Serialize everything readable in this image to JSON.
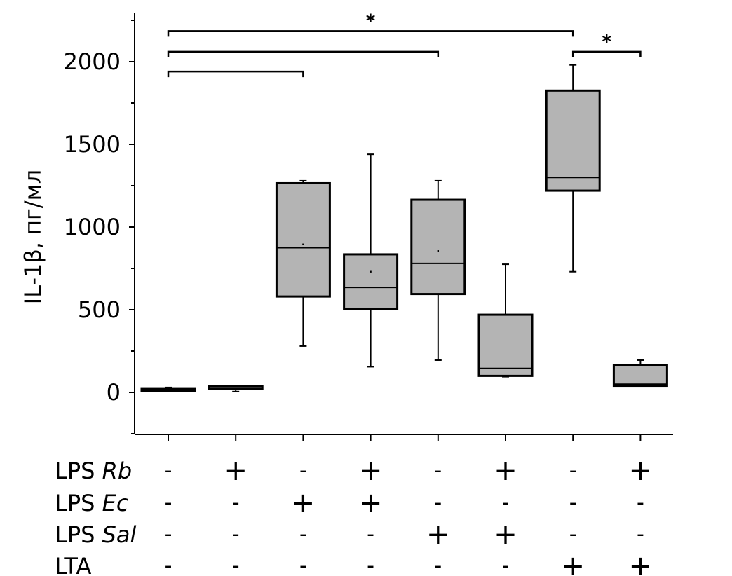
{
  "chart_data": {
    "type": "box",
    "ylabel": "IL-1β, пг/мл",
    "ylim": [
      -250,
      2300
    ],
    "yticks": [
      0,
      500,
      1000,
      1500,
      2000
    ],
    "groups": [
      {
        "whisker_low": 10,
        "q1": 10,
        "median": 20,
        "q3": 25,
        "whisker_high": 30,
        "mean": null
      },
      {
        "whisker_low": 5,
        "q1": 30,
        "median": 35,
        "q3": 40,
        "whisker_high": 40,
        "mean": null
      },
      {
        "whisker_low": 280,
        "q1": 580,
        "median": 875,
        "q3": 1265,
        "whisker_high": 1280,
        "mean": 895
      },
      {
        "whisker_low": 155,
        "q1": 505,
        "median": 635,
        "q3": 835,
        "whisker_high": 1440,
        "mean": 730
      },
      {
        "whisker_low": 195,
        "q1": 595,
        "median": 780,
        "q3": 1165,
        "whisker_high": 1280,
        "mean": 855
      },
      {
        "whisker_low": 95,
        "q1": 100,
        "median": 145,
        "q3": 470,
        "whisker_high": 775,
        "mean": null
      },
      {
        "whisker_low": 730,
        "q1": 1220,
        "median": 1300,
        "q3": 1825,
        "whisker_high": 1980,
        "mean": null
      },
      {
        "whisker_low": 40,
        "q1": 40,
        "median": 50,
        "q3": 165,
        "whisker_high": 195,
        "mean": null
      }
    ],
    "conditions": [
      {
        "label": "LPS",
        "italic": "Rb",
        "values": [
          "-",
          "+",
          "-",
          "+",
          "-",
          "+",
          "-",
          "+"
        ]
      },
      {
        "label": "LPS",
        "italic": "Ec",
        "values": [
          "-",
          "-",
          "+",
          "+",
          "-",
          "-",
          "-",
          "-"
        ]
      },
      {
        "label": "LPS",
        "italic": "Sal",
        "values": [
          "-",
          "-",
          "-",
          "-",
          "+",
          "+",
          "-",
          "-"
        ]
      },
      {
        "label": "LTA",
        "italic": "",
        "values": [
          "-",
          "-",
          "-",
          "-",
          "-",
          "-",
          "+",
          "+"
        ]
      }
    ],
    "significance": [
      {
        "from": 0,
        "to": 6,
        "y": 2185,
        "label": "*"
      },
      {
        "from": 0,
        "to": 4,
        "y": 2060,
        "label": ""
      },
      {
        "from": 0,
        "to": 2,
        "y": 1940,
        "label": ""
      },
      {
        "from": 6,
        "to": 7,
        "y": 2060,
        "label": "*"
      }
    ]
  }
}
